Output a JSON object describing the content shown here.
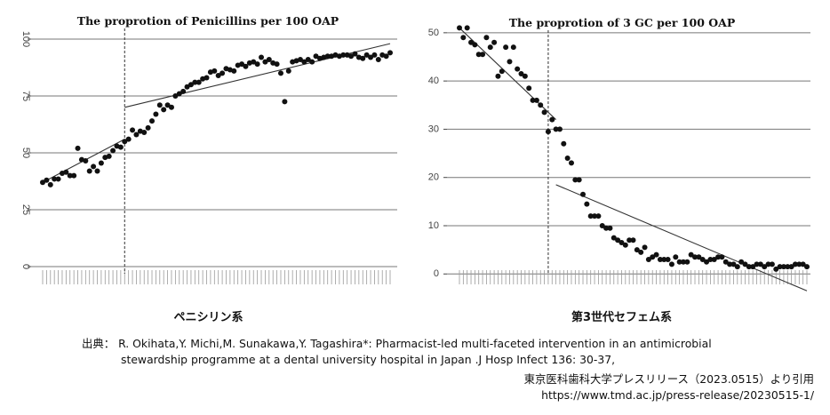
{
  "chart_data": [
    {
      "type": "scatter",
      "title": "The proprotion of Penicillins per 100 OAP",
      "caption": "ペニシリン系",
      "xlabel": "",
      "ylabel": "",
      "ylim": [
        0,
        100
      ],
      "yticks": [
        0,
        25,
        50,
        75,
        100
      ],
      "grid": true,
      "intervention_index": 21,
      "values": [
        37,
        38,
        36,
        38.5,
        38.5,
        41,
        41.5,
        40,
        40,
        52,
        47,
        46.5,
        42,
        44,
        42,
        45.5,
        48,
        48.5,
        51,
        53,
        52.5,
        55,
        56,
        60,
        58,
        59.5,
        59,
        61,
        64,
        67,
        71,
        69,
        71,
        70,
        75,
        76,
        77,
        79,
        80,
        81,
        81,
        82.5,
        83,
        85.5,
        86,
        84,
        85,
        87,
        86.5,
        86,
        88.5,
        89,
        88,
        89.5,
        90,
        89,
        92,
        90,
        91,
        89.5,
        89,
        85,
        72.5,
        86,
        90,
        90.5,
        91,
        90,
        91,
        90,
        92.5,
        91.5,
        92,
        92.5,
        92.5,
        93,
        92.5,
        93,
        93,
        92.5,
        93.5,
        92,
        91.5,
        93,
        92,
        93,
        91,
        93,
        92.5,
        94
      ],
      "trend_pre": [
        [
          0,
          37
        ],
        [
          21,
          56
        ]
      ],
      "trend_post": [
        [
          21,
          70
        ],
        [
          89,
          98
        ]
      ]
    },
    {
      "type": "scatter",
      "title": "The proprotion of 3 GC per 100 OAP",
      "caption": "第3世代セフェム系",
      "xlabel": "",
      "ylabel": "",
      "ylim": [
        -4,
        52
      ],
      "yticks": [
        0,
        10,
        20,
        30,
        40,
        50
      ],
      "grid": true,
      "intervention_index": 23,
      "values": [
        51,
        49,
        51,
        48,
        47.5,
        45.5,
        45.5,
        49,
        47,
        48,
        41,
        42,
        47,
        44,
        47,
        42.5,
        41.5,
        41,
        38.5,
        36,
        36,
        35,
        33.5,
        29.5,
        32,
        30,
        30,
        27,
        24,
        23,
        19.5,
        19.5,
        16.5,
        14.5,
        12,
        12,
        12,
        10,
        9.5,
        9.5,
        7.5,
        7,
        6.5,
        6,
        7,
        7,
        5,
        4.5,
        5.5,
        3,
        3.5,
        4,
        3,
        3,
        3,
        2,
        3.5,
        2.5,
        2.5,
        2.5,
        4,
        3.5,
        3.5,
        3,
        2.5,
        3,
        3,
        3.5,
        3.5,
        2.5,
        2,
        2,
        1.5,
        2.5,
        2,
        1.5,
        1.5,
        2,
        2,
        1.5,
        2,
        2,
        1,
        1.5,
        1.5,
        1.5,
        1.5,
        2,
        2,
        2,
        1.5
      ],
      "trend_pre": [
        [
          0,
          51
        ],
        [
          25,
          32
        ]
      ],
      "trend_post": [
        [
          25,
          18.5
        ],
        [
          90,
          -3.5
        ]
      ]
    }
  ],
  "source": {
    "line1": "出典： R. Okihata,Y. Michi,M. Sunakawa,Y. Tagashira*: Pharmacist-led multi-faceted intervention in an antimicrobial",
    "line2": "stewardship programme at a dental university hospital in Japan .J Hosp Infect 136:  30-37,",
    "line3": "東京医科歯科大学プレスリリース（2023.0515）より引用",
    "line4": "https://www.tmd.ac.jp/press-release/20230515-1/"
  },
  "colors": {
    "point": "#111111",
    "grid": "#777777",
    "trend": "#333333",
    "axis": "#444444"
  }
}
